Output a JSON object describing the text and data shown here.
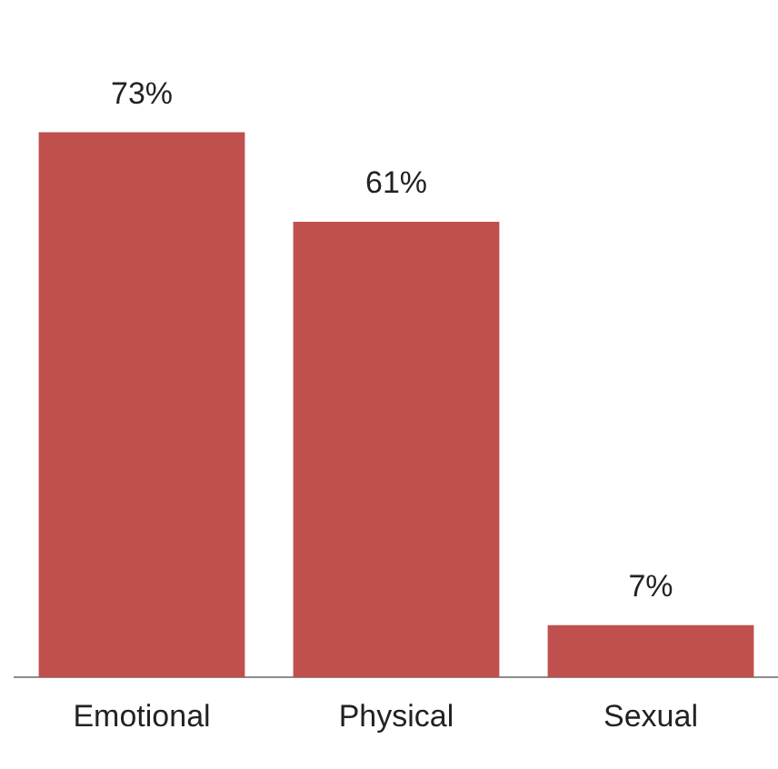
{
  "chart_data": {
    "type": "bar",
    "categories": [
      "Emotional",
      "Physical",
      "Sexual"
    ],
    "values": [
      73,
      61,
      7
    ],
    "color": "#c0504d",
    "value_labels": [
      "73%",
      "61%",
      "7%"
    ],
    "grid": false,
    "legend": false
  }
}
